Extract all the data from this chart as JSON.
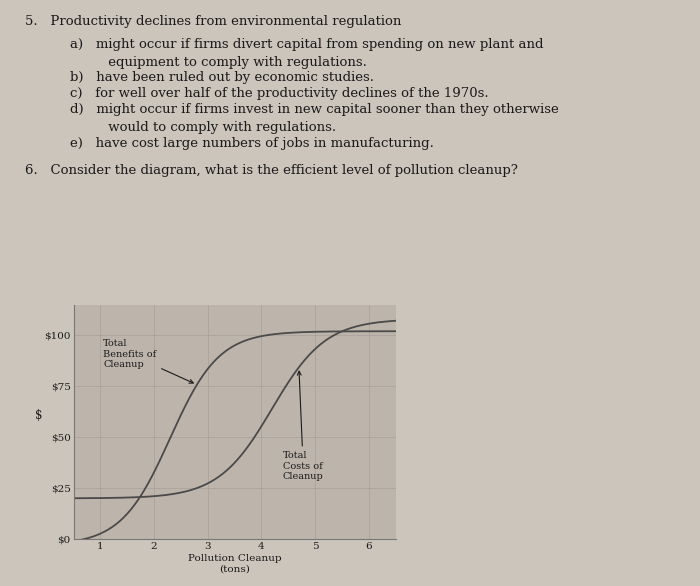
{
  "background_color": "#ccc5bc",
  "text_color": "#1a1a1a",
  "q5_title": "5.   Productivity declines from environmental regulation",
  "q5_a": "a)   might occur if firms divert capital from spending on new plant and",
  "q5_a2": "         equipment to comply with regulations.",
  "q5_b": "b)   have been ruled out by economic studies.",
  "q5_c": "c)   for well over half of the productivity declines of the 1970s.",
  "q5_d": "d)   might occur if firms invest in new capital sooner than they otherwise",
  "q5_d2": "         would to comply with regulations.",
  "q5_e": "e)   have cost large numbers of jobs in manufacturing.",
  "q6_title": "6.   Consider the diagram, what is the efficient level of pollution cleanup?",
  "ylabel": "$",
  "xlabel": "Pollution Cleanup\n(tons)",
  "yticks": [
    0,
    25,
    50,
    75,
    100
  ],
  "ytick_labels": [
    "$0",
    "$25",
    "$50",
    "$75",
    "$100"
  ],
  "xticks": [
    1,
    2,
    3,
    4,
    5,
    6
  ],
  "xlim": [
    0.5,
    6.5
  ],
  "ylim": [
    0,
    115
  ],
  "benefits_label": "Total\nBenefits of\nCleanup",
  "costs_label": "Total\nCosts of\nCleanup",
  "chart_bg": "#bdb5ac",
  "line_color": "#4a4a4a",
  "font_size_text": 9.5,
  "font_size_chart": 7.5
}
